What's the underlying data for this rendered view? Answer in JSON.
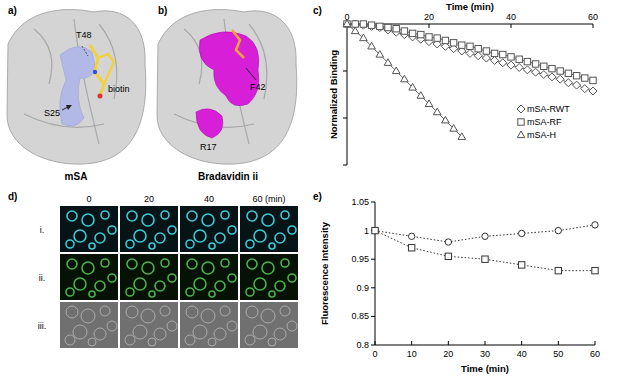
{
  "chart_data": [
    {
      "type": "line",
      "annotations": [
        "c)"
      ],
      "xlabel": "Time (min)",
      "ylabel": "Normalized Binding",
      "xlim": [
        0,
        60
      ],
      "xticks": [
        0,
        20,
        40,
        60
      ],
      "ylim": [
        0.4,
        1.0
      ],
      "yticks": [
        0.4,
        0.6,
        0.8,
        1.0
      ],
      "tick_labels": "x",
      "legend": "right",
      "x": [
        0,
        2,
        4,
        6,
        8,
        10,
        12,
        14,
        16,
        18,
        20,
        22,
        24,
        26,
        28,
        30,
        32,
        34,
        36,
        38,
        40,
        42,
        44,
        46,
        48,
        50,
        52,
        54,
        56,
        58,
        60
      ],
      "series": [
        {
          "name": "mSA-RWT",
          "color": "#555555",
          "marker": "diamond",
          "line_style": "solid",
          "values": [
            1.0,
            1.0,
            0.995,
            0.99,
            0.985,
            0.975,
            0.965,
            0.955,
            0.945,
            0.935,
            0.925,
            0.915,
            0.905,
            0.895,
            0.885,
            0.875,
            0.865,
            0.855,
            0.845,
            0.835,
            0.825,
            0.815,
            0.805,
            0.795,
            0.785,
            0.775,
            0.765,
            0.75,
            0.74,
            0.725,
            0.715
          ]
        },
        {
          "name": "mSA-RF",
          "color": "#555555",
          "marker": "square",
          "line_style": "solid",
          "values": [
            1.0,
            1.0,
            1.0,
            0.995,
            0.99,
            0.985,
            0.98,
            0.97,
            0.96,
            0.955,
            0.945,
            0.94,
            0.93,
            0.92,
            0.91,
            0.905,
            0.895,
            0.885,
            0.875,
            0.87,
            0.86,
            0.85,
            0.84,
            0.83,
            0.82,
            0.81,
            0.8,
            0.79,
            0.78,
            0.77,
            0.76
          ]
        },
        {
          "name": "mSA-H",
          "color": "#555555",
          "marker": "triangle",
          "line_style": "solid",
          "values": [
            1.0,
            0.97,
            0.94,
            0.905,
            0.87,
            0.835,
            0.8,
            0.765,
            0.73,
            0.695,
            0.66,
            0.625,
            0.59,
            0.555,
            0.52,
            null,
            null,
            null,
            null,
            null,
            null,
            null,
            null,
            null,
            null,
            null,
            null,
            null,
            null,
            null,
            null
          ]
        }
      ]
    },
    {
      "type": "line",
      "annotations": [
        "e)"
      ],
      "xlabel": "Time (min)",
      "ylabel": "Fluorescence Intensity",
      "xlim": [
        0,
        60
      ],
      "xticks": [
        0,
        10,
        20,
        30,
        40,
        50,
        60
      ],
      "ylim": [
        0.8,
        1.05
      ],
      "yticks": [
        0.8,
        0.85,
        0.9,
        0.95,
        1,
        1.05
      ],
      "x": [
        0,
        10,
        20,
        30,
        40,
        50,
        60
      ],
      "series": [
        {
          "color": "#333333",
          "marker": "circle",
          "line_style": "dotted",
          "values": [
            1.0,
            0.99,
            0.98,
            0.99,
            0.995,
            1.0,
            1.01
          ]
        },
        {
          "color": "#333333",
          "marker": "square",
          "line_style": "dotted",
          "values": [
            1.0,
            0.97,
            0.955,
            0.95,
            0.94,
            0.93,
            0.93
          ]
        }
      ]
    }
  ],
  "panels": {
    "a": {
      "label": "a)",
      "title": "mSA",
      "annotations": [
        "T48",
        "biotin",
        "S25"
      ]
    },
    "b": {
      "label": "b)",
      "title": "Bradavidin ii",
      "annotations": [
        "F42",
        "R17"
      ]
    },
    "d": {
      "label": "d)",
      "times": [
        "0",
        "20",
        "40",
        "60 (min)"
      ],
      "rows": [
        "i.",
        "ii.",
        "iii."
      ]
    }
  }
}
